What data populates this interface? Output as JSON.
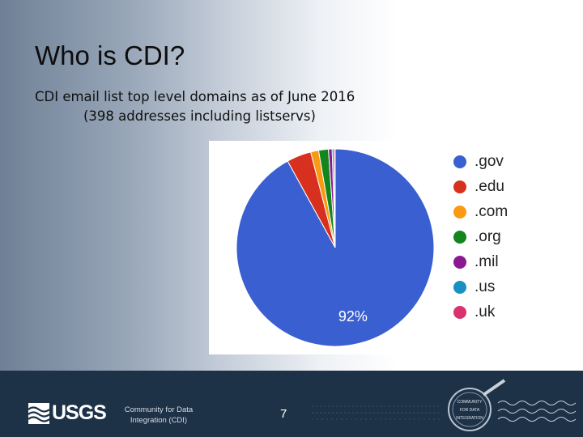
{
  "slide": {
    "title": "Who is CDI?",
    "subtitle_line1": "CDI email list top level domains as of June 2016",
    "subtitle_line2": "(398 addresses including listservs)",
    "page_number": "7"
  },
  "footer": {
    "usgs_logo_text": "USGS",
    "cdi_line1": "Community for Data",
    "cdi_line2": "Integration (CDI)",
    "seal_text": "COMMUNITY FOR DATA INTEGRATION"
  },
  "chart_data": {
    "type": "pie",
    "title": "",
    "categories": [
      ".gov",
      ".edu",
      ".com",
      ".org",
      ".mil",
      ".us",
      ".uk"
    ],
    "values": [
      92,
      4,
      1.3,
      1.6,
      0.6,
      0.3,
      0.2
    ],
    "colors": [
      "#3a5fd0",
      "#d7301f",
      "#f99a12",
      "#13851d",
      "#8a1893",
      "#1890c1",
      "#d8336e"
    ],
    "data_labels": [
      "92%",
      "",
      "",
      "",
      "",
      "",
      ""
    ],
    "legend_position": "right"
  }
}
